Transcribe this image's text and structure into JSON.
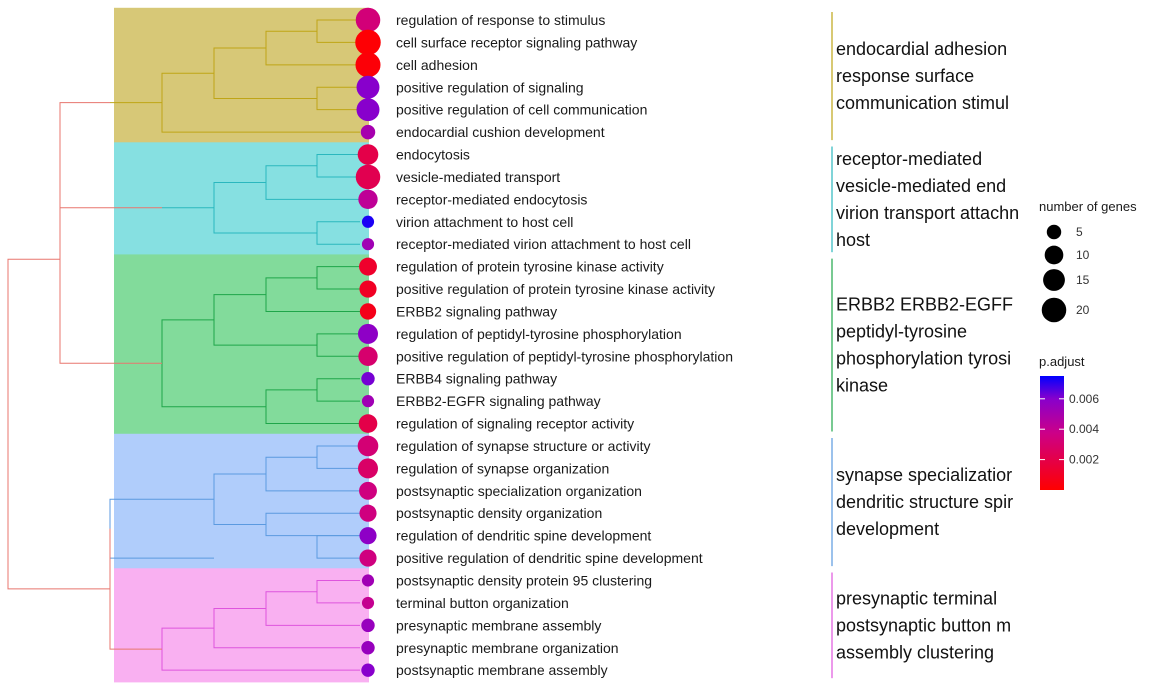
{
  "chart_data": {
    "type": "treeplot",
    "description_free": true,
    "terms": [
      {
        "label": "regulation of response to stimulus",
        "count": 20,
        "p_adjust": 0.0033
      },
      {
        "label": "cell surface receptor signaling pathway",
        "count": 22,
        "p_adjust": 0.0001
      },
      {
        "label": "cell adhesion",
        "count": 21,
        "p_adjust": 0.0002
      },
      {
        "label": "positive regulation of signaling",
        "count": 17,
        "p_adjust": 0.006
      },
      {
        "label": "positive regulation of cell communication",
        "count": 17,
        "p_adjust": 0.006
      },
      {
        "label": "endocardial cushion development",
        "count": 5,
        "p_adjust": 0.005
      },
      {
        "label": "endocytosis",
        "count": 13,
        "p_adjust": 0.002
      },
      {
        "label": "vesicle-mediated transport",
        "count": 20,
        "p_adjust": 0.0022
      },
      {
        "label": "receptor-mediated endocytosis",
        "count": 11,
        "p_adjust": 0.0042
      },
      {
        "label": "virion attachment to host cell",
        "count": 3,
        "p_adjust": 0.0072
      },
      {
        "label": "receptor-mediated virion attachment to host cell",
        "count": 3,
        "p_adjust": 0.0052
      },
      {
        "label": "regulation of protein tyrosine kinase activity",
        "count": 9,
        "p_adjust": 0.0012
      },
      {
        "label": "positive regulation of protein tyrosine kinase activity",
        "count": 8,
        "p_adjust": 0.001
      },
      {
        "label": "ERBB2 signaling pathway",
        "count": 7,
        "p_adjust": 0.0007
      },
      {
        "label": "regulation of peptidyl-tyrosine phosphorylation",
        "count": 12,
        "p_adjust": 0.0058
      },
      {
        "label": "positive regulation of peptidyl-tyrosine phosphorylation",
        "count": 11,
        "p_adjust": 0.003
      },
      {
        "label": "ERBB4 signaling pathway",
        "count": 4,
        "p_adjust": 0.0062
      },
      {
        "label": "ERBB2-EGFR signaling pathway",
        "count": 3,
        "p_adjust": 0.0052
      },
      {
        "label": "regulation of signaling receptor activity",
        "count": 10,
        "p_adjust": 0.002
      },
      {
        "label": "regulation of synapse structure or activity",
        "count": 13,
        "p_adjust": 0.0032
      },
      {
        "label": "regulation of synapse organization",
        "count": 12,
        "p_adjust": 0.0028
      },
      {
        "label": "postsynaptic specialization organization",
        "count": 9,
        "p_adjust": 0.0035
      },
      {
        "label": "postsynaptic density organization",
        "count": 8,
        "p_adjust": 0.0035
      },
      {
        "label": "regulation of dendritic spine development",
        "count": 8,
        "p_adjust": 0.0058
      },
      {
        "label": "positive regulation of dendritic spine development",
        "count": 8,
        "p_adjust": 0.0035
      },
      {
        "label": "postsynaptic density protein 95 clustering",
        "count": 3,
        "p_adjust": 0.0052
      },
      {
        "label": "terminal button organization",
        "count": 3,
        "p_adjust": 0.004
      },
      {
        "label": "presynaptic membrane assembly",
        "count": 4,
        "p_adjust": 0.0055
      },
      {
        "label": "presynaptic membrane organization",
        "count": 4,
        "p_adjust": 0.0055
      },
      {
        "label": "postsynaptic membrane assembly",
        "count": 4,
        "p_adjust": 0.006
      }
    ],
    "clusters": [
      {
        "start": 0,
        "end": 5,
        "color": "#BFA517",
        "fill": "#D7C877",
        "lines": [
          "endocardial adhesion",
          "response surface",
          "communication stimul"
        ]
      },
      {
        "start": 6,
        "end": 10,
        "color": "#2BB7BE",
        "fill": "#86E0E1",
        "lines": [
          "receptor-mediated",
          "vesicle-mediated end",
          "virion transport attachn",
          "host"
        ]
      },
      {
        "start": 11,
        "end": 18,
        "color": "#1FA64A",
        "fill": "#82DB9B",
        "lines": [
          "ERBB2 ERBB2-EGFF",
          "peptidyl-tyrosine",
          "phosphorylation tyrosi",
          "kinase"
        ]
      },
      {
        "start": 19,
        "end": 24,
        "color": "#5B9AE0",
        "fill": "#B0CDFB",
        "lines": [
          "synapse specializatior",
          "dendritic structure spir",
          "development"
        ]
      },
      {
        "start": 25,
        "end": 29,
        "color": "#DE55DD",
        "fill": "#F9B0F1",
        "lines": [
          "presynaptic terminal",
          "postsynaptic button m",
          "assembly clustering"
        ]
      }
    ],
    "legend_size": {
      "title": "number of genes",
      "values": [
        5,
        10,
        15,
        20
      ]
    },
    "legend_color": {
      "title": "p.adjust",
      "ticks": [
        0.002,
        0.004,
        0.006
      ],
      "tick_labels": [
        "0.002",
        "0.004",
        "0.006"
      ],
      "range": [
        0.0,
        0.0075
      ],
      "low_color": "#FF0000",
      "high_color": "#0000FF"
    },
    "root_color": "#E8766E"
  }
}
